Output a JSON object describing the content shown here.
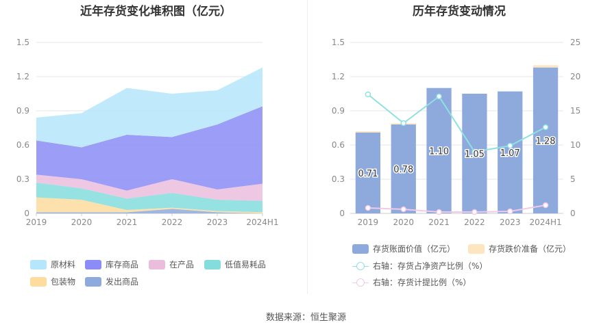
{
  "left_chart": {
    "title": "近年存货变化堆积图（亿元）"
  },
  "right_chart": {
    "title": "历年存货变动情况"
  },
  "source": "数据来源：恒生聚源",
  "chart_data": [
    {
      "type": "area",
      "stacked": true,
      "title": "近年存货变化堆积图（亿元）",
      "categories": [
        "2019",
        "2020",
        "2021",
        "2022",
        "2023",
        "2024H1"
      ],
      "ylim": [
        0,
        1.5
      ],
      "yticks": [
        "0",
        "0.3",
        "0.6",
        "0.9",
        "1.2",
        "1.5"
      ],
      "grid": true,
      "legend_position": "bottom",
      "series": [
        {
          "name": "发出商品",
          "color": "#8eaadc",
          "values": [
            0.01,
            0.01,
            0.01,
            0.04,
            0.01,
            0.0
          ]
        },
        {
          "name": "包装物",
          "color": "#fddc9d",
          "values": [
            0.13,
            0.11,
            0.02,
            0.01,
            0.01,
            0.01
          ]
        },
        {
          "name": "低值易耗品",
          "color": "#84dcdc",
          "values": [
            0.13,
            0.1,
            0.1,
            0.13,
            0.1,
            0.1
          ]
        },
        {
          "name": "在产品",
          "color": "#ebbddd",
          "values": [
            0.07,
            0.08,
            0.07,
            0.12,
            0.09,
            0.15
          ]
        },
        {
          "name": "库存商品",
          "color": "#8b8cf6",
          "values": [
            0.3,
            0.28,
            0.49,
            0.37,
            0.57,
            0.68
          ]
        },
        {
          "name": "原材料",
          "color": "#b5e6fc",
          "values": [
            0.2,
            0.3,
            0.41,
            0.38,
            0.3,
            0.34
          ]
        }
      ],
      "legend_order": [
        "原材料",
        "库存商品",
        "在产品",
        "低值易耗品",
        "包装物",
        "发出商品"
      ]
    },
    {
      "type": "bar",
      "title": "历年存货变动情况",
      "categories": [
        "2019",
        "2020",
        "2021",
        "2022",
        "2023",
        "2024H1"
      ],
      "ylim": [
        0,
        1.5
      ],
      "yticks": [
        "0",
        "0.3",
        "0.6",
        "0.9",
        "1.2",
        "1.5"
      ],
      "y2lim": [
        0,
        25
      ],
      "y2ticks": [
        "0",
        "5",
        "10",
        "15",
        "20",
        "25"
      ],
      "grid": true,
      "legend_position": "bottom",
      "series": [
        {
          "name": "存货账面价值（亿元）",
          "type": "bar",
          "stack": "inv",
          "color": "#8eaadc",
          "values": [
            0.71,
            0.78,
            1.1,
            1.05,
            1.07,
            1.28
          ],
          "labels": [
            "0.71",
            "0.78",
            "1.10",
            "1.05",
            "1.07",
            "1.28"
          ]
        },
        {
          "name": "存货跌价准备（亿元）",
          "type": "bar",
          "stack": "inv",
          "color": "#fde6bf",
          "values": [
            0.01,
            0.01,
            0.0,
            0.0,
            0.0,
            0.02
          ]
        },
        {
          "name": "右轴：存货占净资产比例（%）",
          "type": "line",
          "axis": "right",
          "color": "#8fe0e0",
          "values": [
            17.4,
            13.2,
            17.1,
            9.0,
            9.9,
            12.6
          ]
        },
        {
          "name": "右轴：存货计提比例（%）",
          "type": "line",
          "axis": "right",
          "color": "#f2c9e6",
          "values": [
            0.8,
            0.6,
            0.2,
            0.2,
            0.3,
            1.2
          ]
        }
      ]
    }
  ]
}
